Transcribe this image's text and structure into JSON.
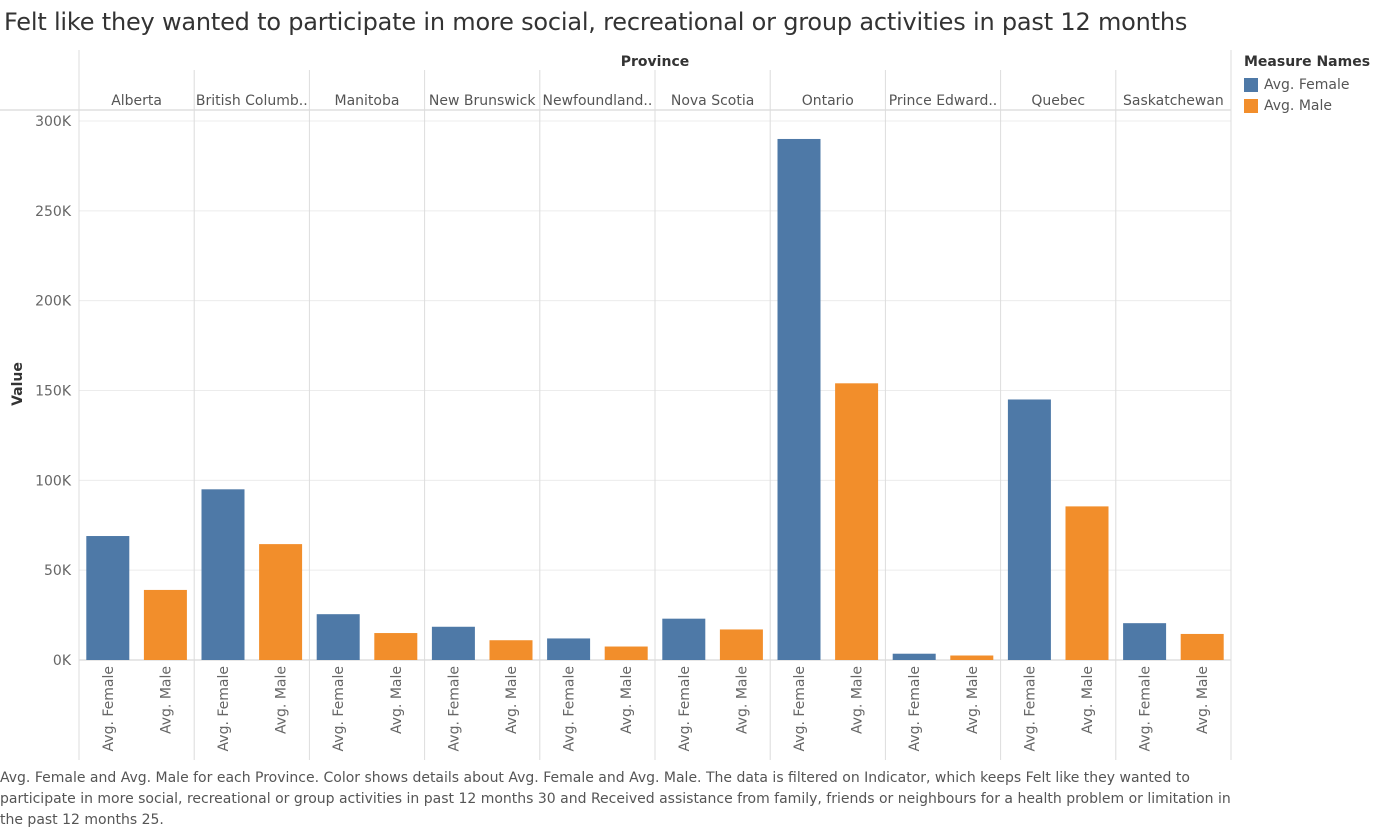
{
  "title": "Felt like they wanted to participate in more social, recreational or group activities in past 12 months",
  "caption": "Avg. Female and Avg. Male for each Province.  Color shows details about Avg. Female and Avg. Male. The data is filtered on Indicator, which keeps Felt like they wanted to participate in more social, recreational or group activities in past 12 months 30 and Received assistance from family, friends or neighbours for a health problem or limitation in the past 12 months 25.",
  "legend": {
    "title": "Measure Names",
    "items": [
      {
        "label": "Avg. Female",
        "color": "#4e79a7"
      },
      {
        "label": "Avg. Male",
        "color": "#f28e2b"
      }
    ]
  },
  "chart_data": {
    "type": "bar",
    "column_header": "Province",
    "ylabel": "Value",
    "ylim": [
      0,
      300000
    ],
    "yticks": [
      0,
      50000,
      100000,
      150000,
      200000,
      250000,
      300000
    ],
    "ytick_labels": [
      "0K",
      "50K",
      "100K",
      "150K",
      "200K",
      "250K",
      "300K"
    ],
    "categories": [
      "Alberta",
      "British Columb..",
      "Manitoba",
      "New Brunswick",
      "Newfoundland..",
      "Nova Scotia",
      "Ontario",
      "Prince Edward..",
      "Quebec",
      "Saskatchewan"
    ],
    "series": [
      {
        "name": "Avg. Female",
        "color": "#4e79a7",
        "values": [
          69000,
          95000,
          25500,
          18500,
          12000,
          23000,
          290000,
          3500,
          145000,
          20500
        ]
      },
      {
        "name": "Avg. Male",
        "color": "#f28e2b",
        "values": [
          39000,
          64500,
          15000,
          11000,
          7500,
          17000,
          154000,
          2500,
          85500,
          14500
        ]
      }
    ],
    "grid": true,
    "legend_position": "right"
  }
}
